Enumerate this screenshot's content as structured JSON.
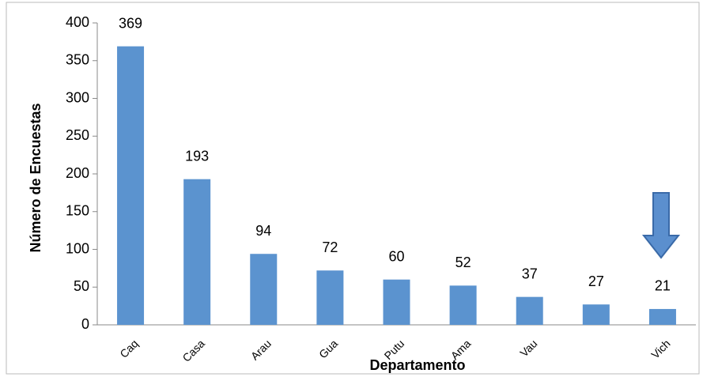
{
  "chart_data": {
    "type": "bar",
    "xlabel": "Departamento",
    "ylabel": "Número de Encuestas",
    "categories": [
      "Caq",
      "Casa",
      "Arau",
      "Gua",
      "Putu",
      "Ama",
      "Vau",
      null,
      "Vich"
    ],
    "values": [
      369,
      193,
      94,
      72,
      60,
      52,
      37,
      27,
      21
    ],
    "color": "#5b93cf",
    "ylim": [
      0,
      400
    ],
    "yticks": [
      0,
      50,
      100,
      150,
      200,
      250,
      300,
      350,
      400
    ],
    "grid": false
  }
}
